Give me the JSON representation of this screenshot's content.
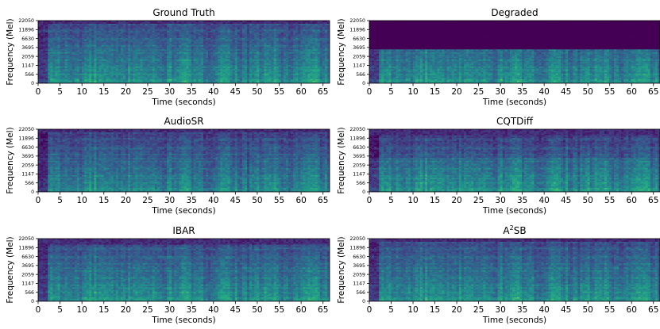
{
  "chart_data": [
    {
      "type": "heatmap",
      "title": "Ground Truth",
      "title_sup": "",
      "xlabel": "Time (seconds)",
      "ylabel": "Frequency (Mel)",
      "xticks": [
        0,
        5,
        10,
        15,
        20,
        25,
        30,
        35,
        40,
        45,
        50,
        55,
        60,
        65
      ],
      "yticks": [
        "0",
        "566",
        "1147",
        "2059",
        "3695",
        "6630",
        "11896",
        "22050"
      ],
      "xlim": [
        0,
        66.5
      ],
      "ylim": [
        0,
        22050
      ],
      "cutoff_hz": 22050
    },
    {
      "type": "heatmap",
      "title": "Degraded",
      "title_sup": "",
      "xlabel": "Time (seconds)",
      "ylabel": "Frequency (Mel)",
      "xticks": [
        0,
        5,
        10,
        15,
        20,
        25,
        30,
        35,
        40,
        45,
        50,
        55,
        60,
        65
      ],
      "yticks": [
        "0",
        "566",
        "1147",
        "2059",
        "3695",
        "6630",
        "11896",
        "22050"
      ],
      "xlim": [
        0,
        66.5
      ],
      "ylim": [
        0,
        22050
      ],
      "cutoff_hz": 4000
    },
    {
      "type": "heatmap",
      "title": "AudioSR",
      "title_sup": "",
      "xlabel": "Time (seconds)",
      "ylabel": "Frequency (Mel)",
      "xticks": [
        0,
        5,
        10,
        15,
        20,
        25,
        30,
        35,
        40,
        45,
        50,
        55,
        60,
        65
      ],
      "yticks": [
        "0",
        "566",
        "1147",
        "2059",
        "3695",
        "6630",
        "11896",
        "22050"
      ],
      "xlim": [
        0,
        66.5
      ],
      "ylim": [
        0,
        22050
      ],
      "cutoff_hz": 22050
    },
    {
      "type": "heatmap",
      "title": "CQTDiff",
      "title_sup": "",
      "xlabel": "Time (seconds)",
      "ylabel": "Frequency (Mel)",
      "xticks": [
        0,
        5,
        10,
        15,
        20,
        25,
        30,
        35,
        40,
        45,
        50,
        55,
        60,
        65
      ],
      "yticks": [
        "0",
        "566",
        "1147",
        "2059",
        "3695",
        "6630",
        "11896",
        "22050"
      ],
      "xlim": [
        0,
        66.5
      ],
      "ylim": [
        0,
        22050
      ],
      "cutoff_hz": 22050
    },
    {
      "type": "heatmap",
      "title": "IBAR",
      "title_sup": "",
      "xlabel": "Time (seconds)",
      "ylabel": "Frequency (Mel)",
      "xticks": [
        0,
        5,
        10,
        15,
        20,
        25,
        30,
        35,
        40,
        45,
        50,
        55,
        60,
        65
      ],
      "yticks": [
        "0",
        "566",
        "1147",
        "2059",
        "3695",
        "6630",
        "11896",
        "22050"
      ],
      "xlim": [
        0,
        66.5
      ],
      "ylim": [
        0,
        22050
      ],
      "cutoff_hz": 22050
    },
    {
      "type": "heatmap",
      "title": "A",
      "title_sup": "2",
      "title_suffix": "SB",
      "xlabel": "Time (seconds)",
      "ylabel": "Frequency (Mel)",
      "xticks": [
        0,
        5,
        10,
        15,
        20,
        25,
        30,
        35,
        40,
        45,
        50,
        55,
        60,
        65
      ],
      "yticks": [
        "0",
        "566",
        "1147",
        "2059",
        "3695",
        "6630",
        "11896",
        "22050"
      ],
      "xlim": [
        0,
        66.5
      ],
      "ylim": [
        0,
        22050
      ],
      "cutoff_hz": 22050
    }
  ],
  "colors": {
    "viridis_dark": "#440154",
    "viridis_mid": "#21918c",
    "viridis_bright": "#fde725"
  }
}
